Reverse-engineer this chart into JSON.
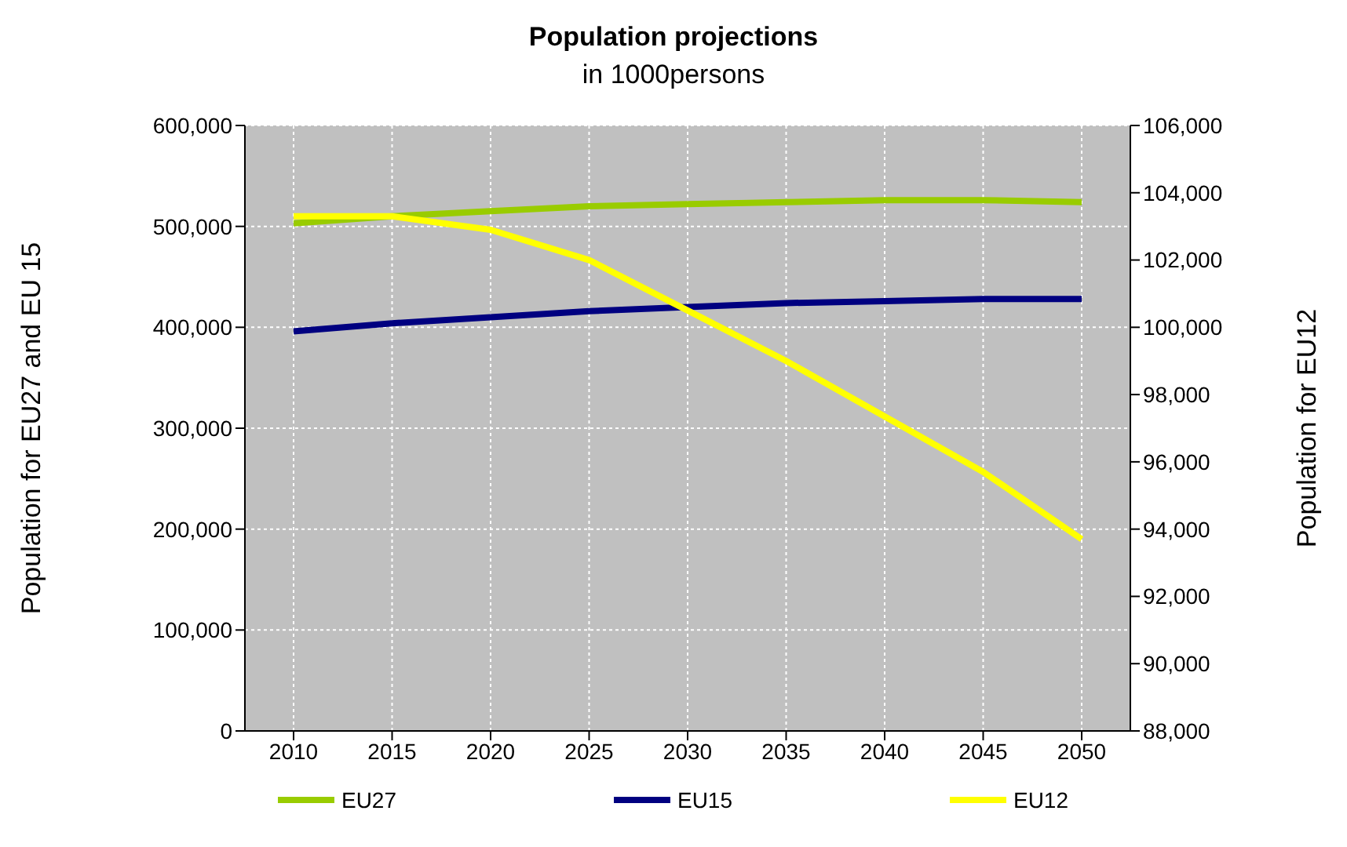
{
  "chart_data": {
    "type": "line",
    "title": "Population projections",
    "subtitle": "in 1000persons",
    "ylabel": "Population for EU27 and EU 15",
    "y2label": "Population for EU12",
    "categories": [
      "2010",
      "2015",
      "2020",
      "2025",
      "2030",
      "2035",
      "2040",
      "2045",
      "2050"
    ],
    "series": [
      {
        "name": "EU27",
        "color": "#99cc00",
        "values": [
          503000,
          510000,
          515000,
          520000,
          522000,
          524000,
          526000,
          526000,
          524000
        ]
      },
      {
        "name": "EU15",
        "color": "#000080",
        "values": [
          396000,
          404000,
          410000,
          416000,
          420000,
          424000,
          426000,
          428000,
          428000
        ]
      },
      {
        "name": "EU12",
        "color": "#ffff00",
        "axis": "y2",
        "values": [
          103300,
          103300,
          102900,
          102000,
          100500,
          99000,
          97350,
          95700,
          93700
        ]
      }
    ],
    "ylim": [
      0,
      600000
    ],
    "yticks": [
      0,
      {
        "value": 100000,
        "label": "100,000"
      },
      {
        "value": 200000,
        "label": "200,000"
      },
      {
        "value": 300000,
        "label": "300,000"
      },
      {
        "value": 400000,
        "label": "400,000"
      },
      {
        "value": 500000,
        "label": "500,000"
      },
      {
        "value": 600000,
        "label": "600,000"
      }
    ],
    "y2lim": [
      88000,
      106000
    ],
    "y2ticks": [
      {
        "value": 88000,
        "label": "88,000"
      },
      {
        "value": 90000,
        "label": "90,000"
      },
      {
        "value": 92000,
        "label": "92,000"
      },
      {
        "value": 94000,
        "label": "94,000"
      },
      {
        "value": 96000,
        "label": "96,000"
      },
      {
        "value": 98000,
        "label": "98,000"
      },
      {
        "value": 100000,
        "label": "100,000"
      },
      {
        "value": 102000,
        "label": "102,000"
      },
      {
        "value": 104000,
        "label": "104,000"
      },
      {
        "value": 106000,
        "label": "106,000"
      }
    ],
    "grid": true,
    "legend": "bottom",
    "marker": "none",
    "line_style": "solid"
  }
}
